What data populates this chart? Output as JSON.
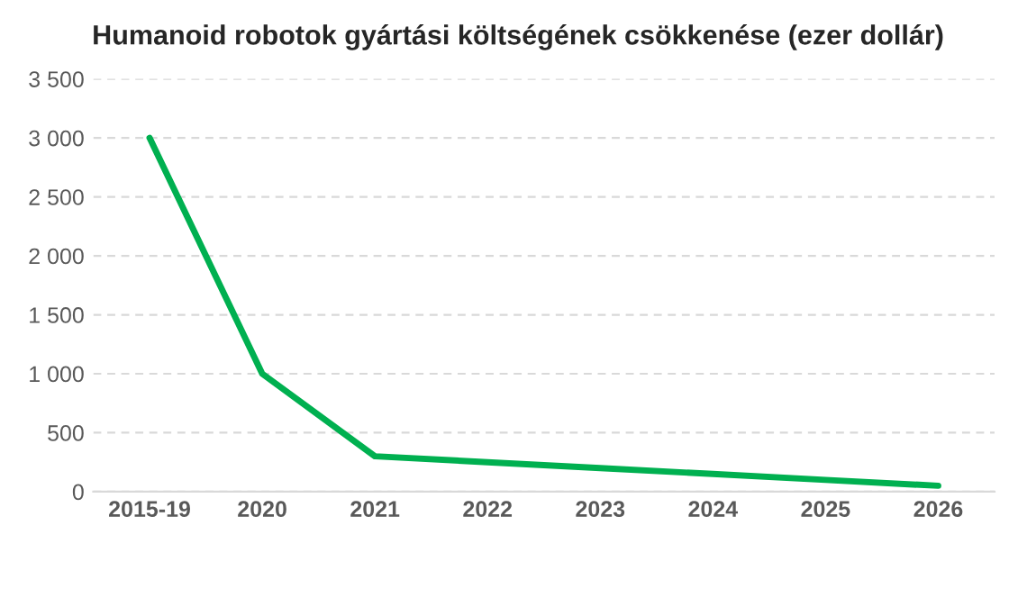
{
  "chart_data": {
    "type": "line",
    "title": "Humanoid robotok gyártási költségének csökkenése (ezer dollár)",
    "categories": [
      "2015-19",
      "2020",
      "2021",
      "2022",
      "2023",
      "2024",
      "2025",
      "2026"
    ],
    "series": [
      {
        "color": "#00b050",
        "values": [
          3000,
          1000,
          300,
          250,
          200,
          150,
          100,
          50
        ]
      }
    ],
    "ylim": [
      0,
      3500
    ],
    "yticks": [
      0,
      500,
      {
        "value": 1000,
        "label": "1 000"
      },
      {
        "value": 1500,
        "label": "1 500"
      },
      {
        "value": 2000,
        "label": "2 000"
      },
      {
        "value": 2500,
        "label": "2 500"
      },
      {
        "value": 3000,
        "label": "3 000"
      },
      {
        "value": 3500,
        "label": "3 500"
      }
    ],
    "grid": "y",
    "marker": "none",
    "line_style": "solid"
  }
}
